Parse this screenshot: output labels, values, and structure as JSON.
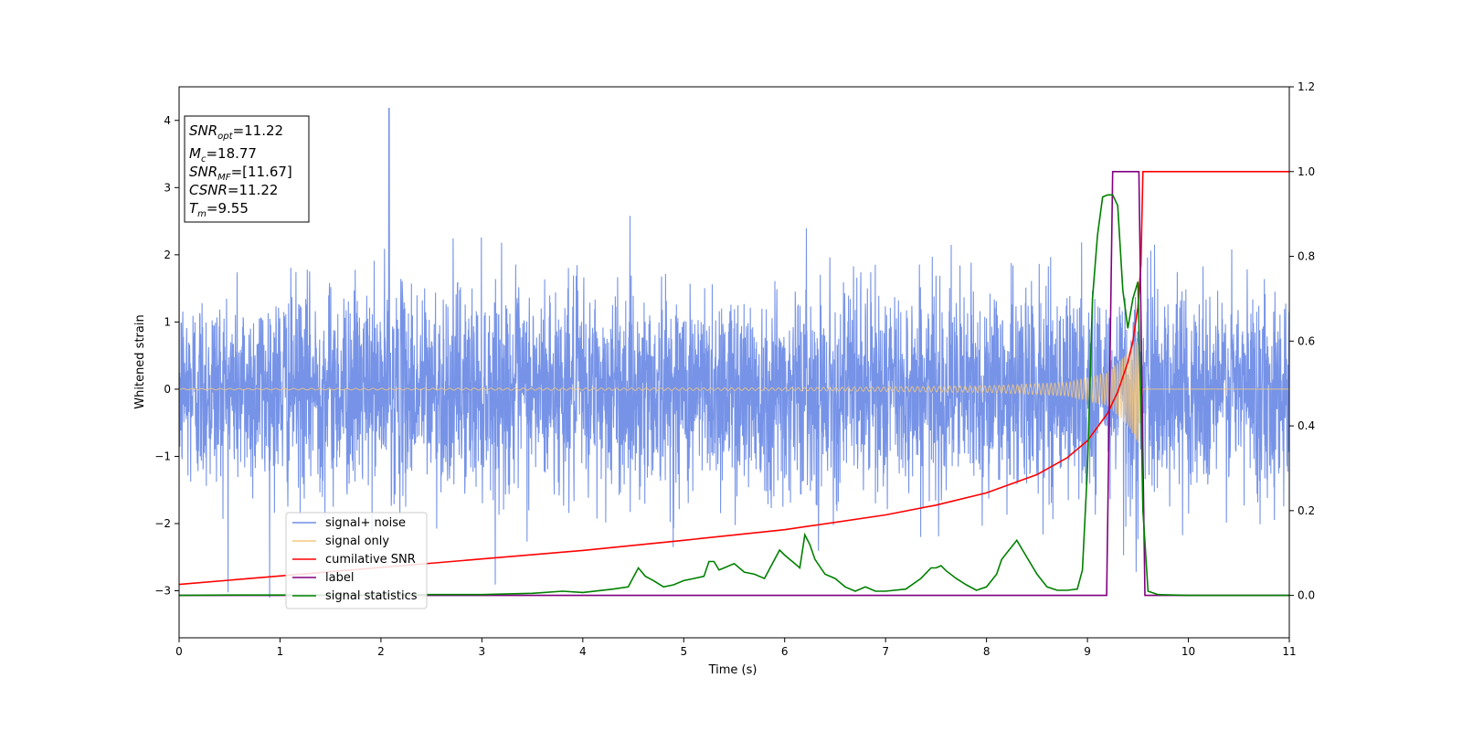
{
  "chart_data": {
    "type": "line",
    "title": "",
    "xlabel": "Time (s)",
    "ylabel": "Whitened strain",
    "y2label": "",
    "xlim": [
      0,
      11
    ],
    "ylim": [
      -3.7,
      4.5
    ],
    "y2lim": [
      -0.1,
      1.2
    ],
    "xticks": [
      "0",
      "1",
      "2",
      "3",
      "4",
      "5",
      "6",
      "7",
      "8",
      "9",
      "10",
      "11"
    ],
    "yticks": [
      "−3",
      "−2",
      "−1",
      "0",
      "1",
      "2",
      "3",
      "4"
    ],
    "y2ticks": [
      "0.0",
      "0.2",
      "0.4",
      "0.6",
      "0.8",
      "1.0",
      "1.2"
    ],
    "grid": false,
    "legend_position": "bottom-left",
    "info_box": {
      "snr_opt_label": "SNR",
      "snr_opt_sub": "opt",
      "snr_opt_value": "=11.22",
      "mc_label": "M",
      "mc_sub": "c",
      "mc_value": "=18.77",
      "snr_mf_label": "SNR",
      "snr_mf_sub": "MF",
      "snr_mf_value": "=[11.67]",
      "csnr_label": "CSNR",
      "csnr_value": "=11.22",
      "tm_label": "T",
      "tm_sub": "m",
      "tm_value": "=9.55"
    },
    "series": [
      {
        "name": "signal+ noise",
        "color": "#6f8de6",
        "axis": "left",
        "description_values": {
          "std": 0.75,
          "approx_min": -3.3,
          "approx_max": 4.2,
          "spike_x": 2.08,
          "spike_y": 4.18
        }
      },
      {
        "name": "signal only",
        "color": "#f5c77e",
        "axis": "left",
        "envelope": {
          "x": [
            0,
            6,
            8,
            8.8,
            9.2,
            9.4,
            9.5,
            9.55,
            11
          ],
          "amplitude": [
            0.01,
            0.02,
            0.05,
            0.1,
            0.25,
            0.55,
            0.8,
            0,
            0
          ]
        },
        "end_time": 9.55
      },
      {
        "name": "cumilative SNR",
        "color": "#ff0000",
        "axis": "right",
        "x": [
          0,
          1,
          2,
          3,
          4,
          5,
          6,
          7,
          7.5,
          8,
          8.5,
          8.8,
          9.0,
          9.2,
          9.3,
          9.4,
          9.45,
          9.5,
          9.53,
          9.55,
          11
        ],
        "y": [
          0.026,
          0.046,
          0.066,
          0.086,
          0.106,
          0.13,
          0.155,
          0.19,
          0.213,
          0.242,
          0.285,
          0.325,
          0.365,
          0.43,
          0.48,
          0.55,
          0.6,
          0.68,
          0.78,
          1.0,
          1.0
        ]
      },
      {
        "name": "label",
        "color": "#800080",
        "axis": "right",
        "x": [
          0,
          9.19,
          9.25,
          9.51,
          9.57,
          11
        ],
        "y": [
          0,
          0,
          1,
          1,
          0,
          0
        ]
      },
      {
        "name": "signal statistics",
        "color": "#008000",
        "axis": "right",
        "x": [
          0,
          0.5,
          1,
          1.5,
          2,
          2.5,
          3,
          3.5,
          3.8,
          4.0,
          4.3,
          4.45,
          4.55,
          4.62,
          4.7,
          4.8,
          4.9,
          5.0,
          5.1,
          5.2,
          5.25,
          5.3,
          5.35,
          5.4,
          5.5,
          5.6,
          5.7,
          5.8,
          5.9,
          5.95,
          6.0,
          6.1,
          6.15,
          6.2,
          6.25,
          6.3,
          6.4,
          6.5,
          6.6,
          6.7,
          6.8,
          6.9,
          7.0,
          7.2,
          7.35,
          7.45,
          7.5,
          7.55,
          7.6,
          7.7,
          7.8,
          7.9,
          8.0,
          8.1,
          8.15,
          8.2,
          8.3,
          8.35,
          8.4,
          8.5,
          8.6,
          8.7,
          8.8,
          8.9,
          8.95,
          9.0,
          9.05,
          9.1,
          9.15,
          9.2,
          9.25,
          9.3,
          9.35,
          9.4,
          9.45,
          9.5,
          9.53,
          9.55,
          9.6,
          9.7,
          10,
          11
        ],
        "y": [
          0.0,
          0.001,
          0.001,
          0.001,
          0.001,
          0.002,
          0.002,
          0.005,
          0.01,
          0.007,
          0.015,
          0.02,
          0.065,
          0.045,
          0.035,
          0.02,
          0.025,
          0.035,
          0.04,
          0.045,
          0.08,
          0.08,
          0.06,
          0.065,
          0.075,
          0.055,
          0.05,
          0.04,
          0.085,
          0.107,
          0.095,
          0.075,
          0.065,
          0.143,
          0.12,
          0.085,
          0.05,
          0.04,
          0.02,
          0.01,
          0.02,
          0.01,
          0.01,
          0.015,
          0.04,
          0.065,
          0.065,
          0.07,
          0.058,
          0.04,
          0.025,
          0.012,
          0.02,
          0.05,
          0.085,
          0.1,
          0.13,
          0.11,
          0.09,
          0.05,
          0.02,
          0.012,
          0.012,
          0.015,
          0.06,
          0.3,
          0.7,
          0.85,
          0.94,
          0.945,
          0.945,
          0.92,
          0.72,
          0.63,
          0.7,
          0.74,
          0.45,
          0.2,
          0.01,
          0.002,
          0.0,
          0.0
        ]
      }
    ]
  }
}
